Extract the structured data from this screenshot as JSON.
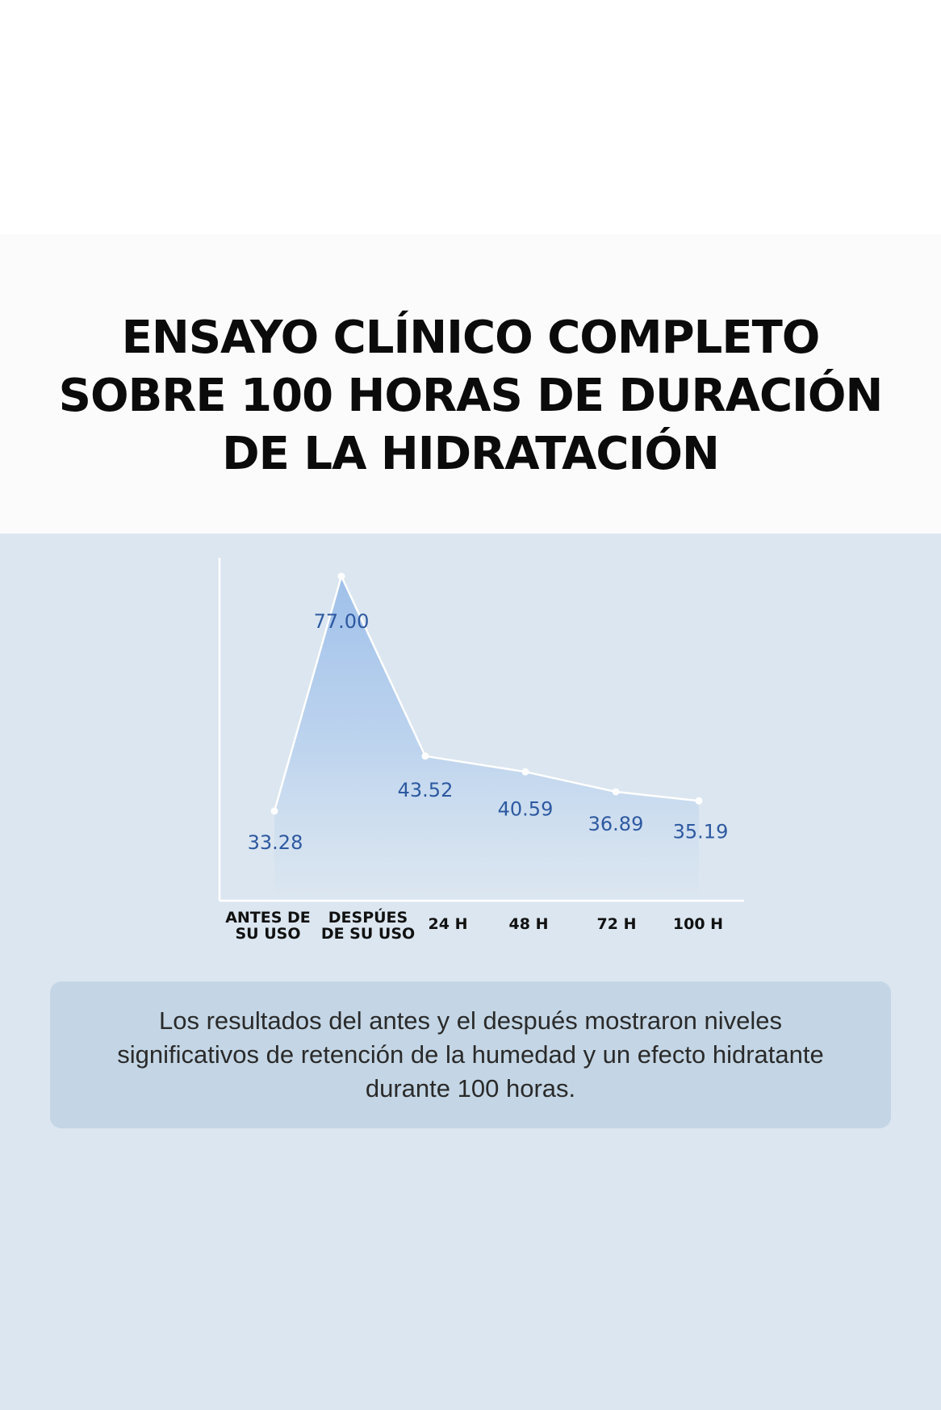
{
  "title_lines": [
    "ENSAYO CLÍNICO COMPLETO",
    "SOBRE 100 HORAS DE DURACIÓN",
    "DE LA HIDRATACIÓN"
  ],
  "note": "Los resultados del antes y el después mostraron niveles significativos de retención de la humedad y un efecto hidratante durante 100 horas.",
  "colors": {
    "section_background": "#dbe6f0",
    "note_background": "#c4d6e5",
    "area_fill_top": "#9fc0ea",
    "data_label": "#2d59a0",
    "line": "#ffffff"
  },
  "chart_data": {
    "type": "area",
    "title": "",
    "xlabel": "",
    "ylabel": "",
    "categories": [
      [
        "ANTES DE",
        "SU USO"
      ],
      [
        "DESPÚES",
        "DE SU USO"
      ],
      [
        "24 H"
      ],
      [
        "48 H"
      ],
      [
        "72 H"
      ],
      [
        "100 H"
      ]
    ],
    "values": [
      33.28,
      77.0,
      43.52,
      40.59,
      36.89,
      35.19
    ],
    "value_labels": [
      "33.28",
      "77.00",
      "43.52",
      "40.59",
      "36.89",
      "35.19"
    ],
    "grid": false,
    "legend": "none"
  }
}
